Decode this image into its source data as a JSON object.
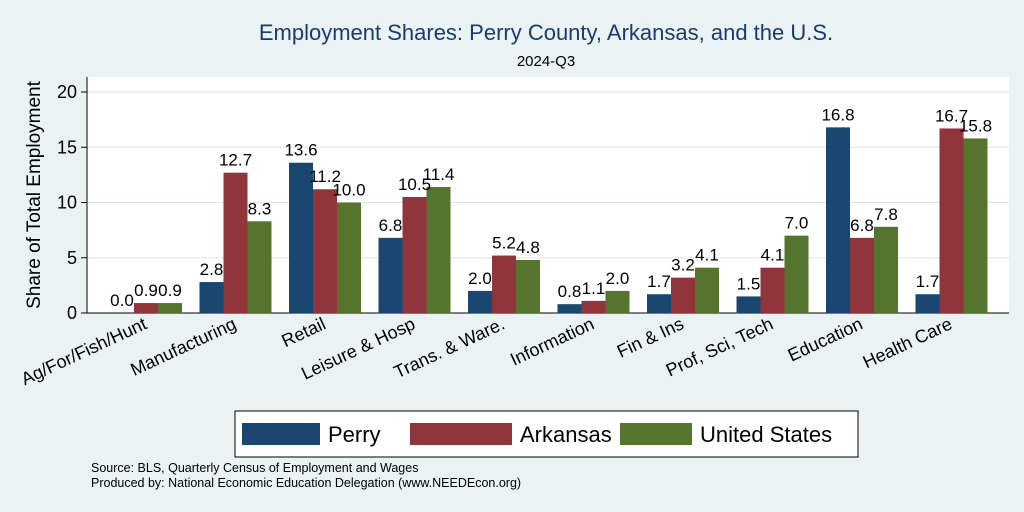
{
  "chart_data": {
    "type": "bar",
    "title": "Employment Shares: Perry County, Arkansas, and the U.S.",
    "subtitle": "2024-Q3",
    "ylabel": "Share of Total Employment",
    "xlabel": "",
    "ylim": [
      0,
      21.6
    ],
    "yticks": [
      0,
      5,
      10,
      15,
      20
    ],
    "grid": true,
    "legend": "bottom",
    "categories": [
      "Ag/For/Fish/Hunt",
      "Manufacturing",
      "Retail",
      "Leisure & Hosp",
      "Trans. & Ware.",
      "Information",
      "Fin & Ins",
      "Prof, Sci, Tech",
      "Education",
      "Health Care"
    ],
    "series": [
      {
        "name": "Perry",
        "color": "#1a476f",
        "values": [
          0.0,
          2.8,
          13.6,
          6.8,
          2.0,
          0.8,
          1.7,
          1.5,
          16.8,
          1.7
        ],
        "labels": [
          "0.0",
          "2.8",
          "13.6",
          "6.8",
          "2.0",
          "0.8",
          "1.7",
          "1.5",
          "16.8",
          "1.7"
        ]
      },
      {
        "name": "Arkansas",
        "color": "#90353b",
        "values": [
          0.9,
          12.7,
          11.2,
          10.5,
          5.2,
          1.1,
          3.2,
          4.1,
          6.8,
          16.7
        ],
        "labels": [
          "0.9",
          "12.7",
          "11.2",
          "10.5",
          "5.2",
          "1.1",
          "3.2",
          "4.1",
          "6.8",
          "16.7"
        ]
      },
      {
        "name": "United States",
        "color": "#55752f",
        "values": [
          0.9,
          8.3,
          10.0,
          11.4,
          4.8,
          2.0,
          4.1,
          7.0,
          7.8,
          15.8
        ],
        "labels": [
          "0.9",
          "8.3",
          "10.0",
          "11.4",
          "4.8",
          "2.0",
          "4.1",
          "7.0",
          "7.8",
          "15.8"
        ]
      }
    ]
  },
  "footer": {
    "source": "Source: BLS, Quarterly Census of Employment and Wages",
    "produced_by": "Produced by: National Economic Education Delegation (www.NEEDEcon.org)"
  }
}
